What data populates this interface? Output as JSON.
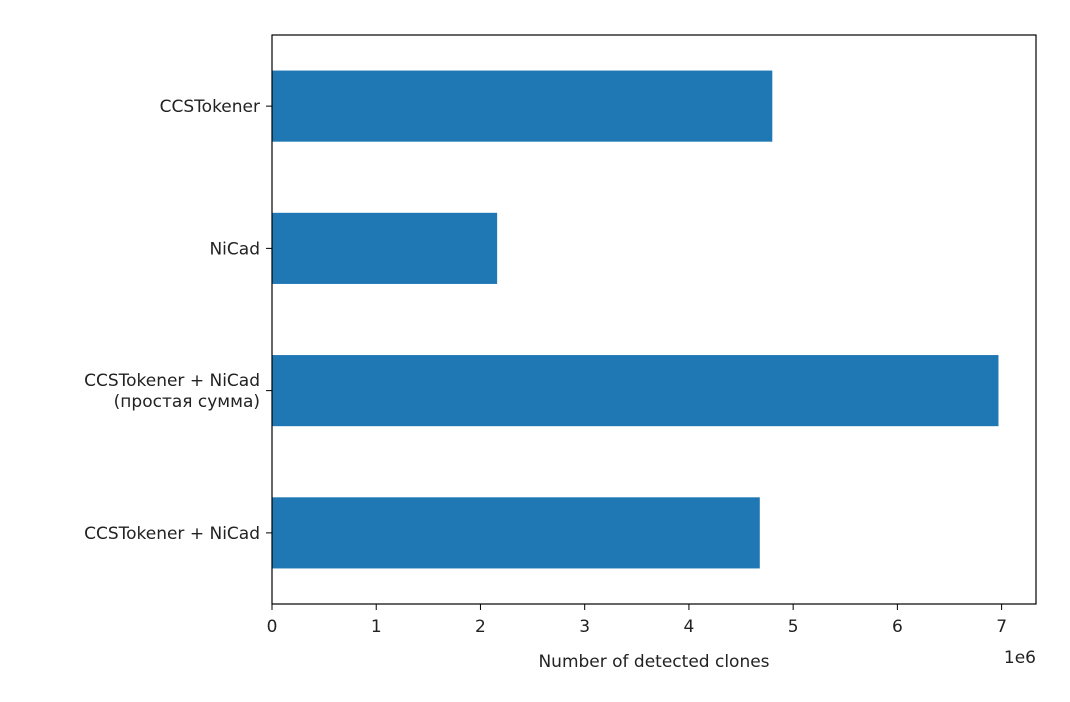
{
  "chart_data": {
    "type": "bar",
    "orientation": "horizontal",
    "categories": [
      [
        "CCSTokener"
      ],
      [
        "NiCad"
      ],
      [
        "CCSTokener + NiCad",
        "(простая сумма)"
      ],
      [
        "CCSTokener + NiCad"
      ]
    ],
    "values": [
      4800000,
      2160000,
      6970000,
      4680000
    ],
    "xlabel": "Number of detected clones",
    "ylabel": "",
    "title": "",
    "x_offset_text": "1e6",
    "xticks": [
      0,
      1,
      2,
      3,
      4,
      5,
      6,
      7
    ],
    "xlim": [
      0,
      7330000
    ],
    "grid": false,
    "bar_color": "#1f77b4"
  }
}
